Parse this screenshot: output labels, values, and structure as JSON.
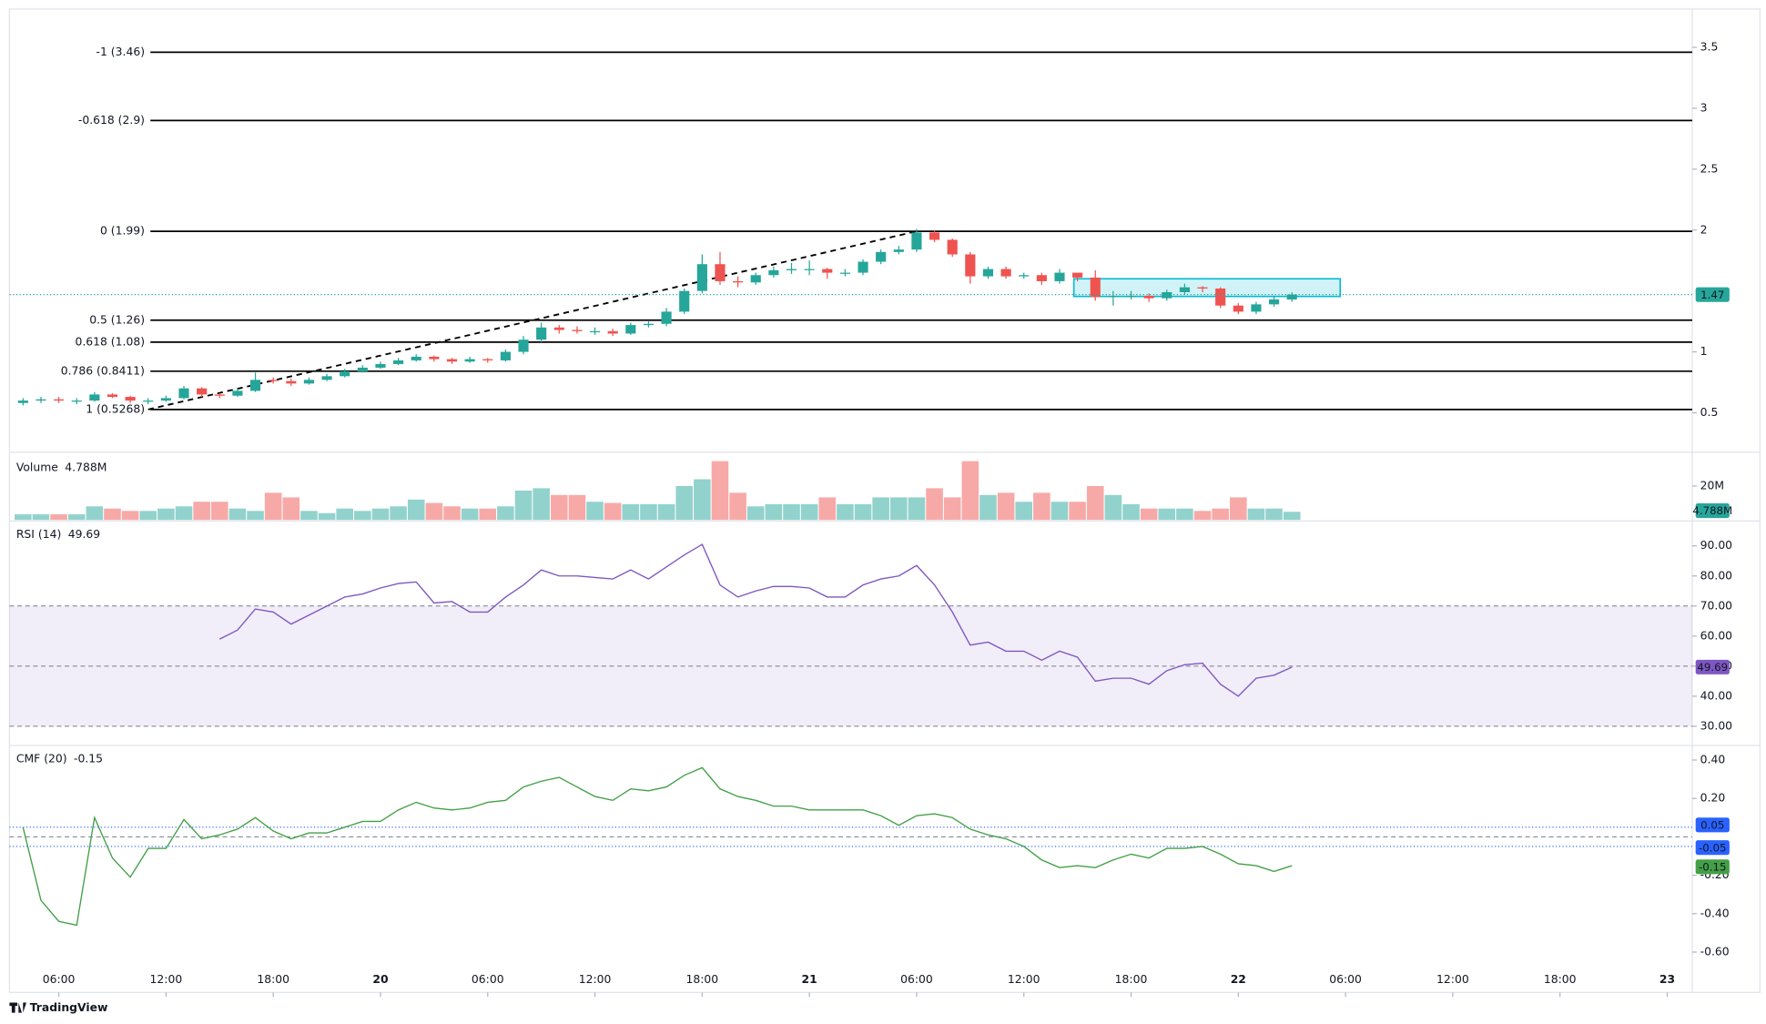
{
  "chart_data": [
    {
      "type": "candlestick",
      "colors": {
        "up": "#26a69a",
        "down": "#ef5350"
      },
      "open": [
        0.58,
        0.6,
        0.61,
        0.6,
        0.6,
        0.65,
        0.63,
        0.6,
        0.6,
        0.62,
        0.7,
        0.65,
        0.64,
        0.68,
        0.77,
        0.76,
        0.74,
        0.77,
        0.8,
        0.84,
        0.87,
        0.9,
        0.93,
        0.96,
        0.94,
        0.92,
        0.94,
        0.93,
        1.0,
        1.1,
        1.2,
        1.18,
        1.17,
        1.17,
        1.15,
        1.22,
        1.23,
        1.33,
        1.5,
        1.72,
        1.58,
        1.57,
        1.63,
        1.67,
        1.68,
        1.68,
        1.65,
        1.65,
        1.74,
        1.82,
        1.84,
        1.98,
        1.92,
        1.8,
        1.62,
        1.68,
        1.62,
        1.63,
        1.58,
        1.65,
        1.61,
        1.45,
        1.46,
        1.46,
        1.44,
        1.49,
        1.53,
        1.52,
        1.38,
        1.33,
        1.39,
        1.43
      ],
      "high": [
        0.62,
        0.63,
        0.63,
        0.62,
        0.67,
        0.66,
        0.64,
        0.62,
        0.64,
        0.72,
        0.71,
        0.66,
        0.7,
        0.83,
        0.79,
        0.78,
        0.79,
        0.82,
        0.86,
        0.89,
        0.92,
        0.95,
        0.98,
        0.97,
        0.95,
        0.96,
        0.95,
        1.02,
        1.13,
        1.24,
        1.22,
        1.21,
        1.2,
        1.19,
        1.24,
        1.25,
        1.36,
        1.52,
        1.8,
        1.82,
        1.62,
        1.65,
        1.7,
        1.73,
        1.75,
        1.69,
        1.68,
        1.76,
        1.84,
        1.87,
        2.01,
        2.0,
        1.93,
        1.82,
        1.7,
        1.7,
        1.65,
        1.65,
        1.68,
        1.64,
        1.67,
        1.5,
        1.5,
        1.48,
        1.51,
        1.56,
        1.54,
        1.53,
        1.4,
        1.41,
        1.46,
        1.49
      ],
      "low": [
        0.56,
        0.58,
        0.58,
        0.57,
        0.59,
        0.62,
        0.58,
        0.57,
        0.59,
        0.61,
        0.63,
        0.62,
        0.63,
        0.67,
        0.74,
        0.72,
        0.73,
        0.76,
        0.79,
        0.83,
        0.86,
        0.89,
        0.92,
        0.92,
        0.9,
        0.91,
        0.91,
        0.92,
        0.98,
        1.08,
        1.15,
        1.15,
        1.14,
        1.13,
        1.14,
        1.2,
        1.21,
        1.31,
        1.48,
        1.55,
        1.53,
        1.55,
        1.61,
        1.64,
        1.63,
        1.6,
        1.62,
        1.63,
        1.72,
        1.8,
        1.82,
        1.9,
        1.78,
        1.56,
        1.6,
        1.6,
        1.6,
        1.55,
        1.56,
        1.58,
        1.42,
        1.38,
        1.43,
        1.41,
        1.42,
        1.47,
        1.49,
        1.36,
        1.31,
        1.31,
        1.37,
        1.41
      ],
      "close": [
        0.6,
        0.61,
        0.6,
        0.6,
        0.65,
        0.63,
        0.6,
        0.6,
        0.62,
        0.7,
        0.65,
        0.64,
        0.68,
        0.77,
        0.76,
        0.74,
        0.77,
        0.8,
        0.84,
        0.87,
        0.9,
        0.93,
        0.96,
        0.94,
        0.92,
        0.94,
        0.93,
        1.0,
        1.1,
        1.2,
        1.18,
        1.17,
        1.17,
        1.15,
        1.22,
        1.23,
        1.33,
        1.5,
        1.72,
        1.58,
        1.57,
        1.63,
        1.67,
        1.68,
        1.68,
        1.65,
        1.65,
        1.74,
        1.82,
        1.84,
        1.98,
        1.92,
        1.8,
        1.62,
        1.68,
        1.62,
        1.63,
        1.58,
        1.65,
        1.61,
        1.45,
        1.46,
        1.46,
        1.44,
        1.49,
        1.53,
        1.52,
        1.38,
        1.33,
        1.39,
        1.43,
        1.47
      ],
      "ylim": [
        0.185,
        3.815
      ],
      "yticks": [
        3.5,
        3,
        2.5,
        2,
        1,
        0.5
      ],
      "xlim": [
        -0.76,
        93.4
      ],
      "xticks": [
        {
          "value": 2,
          "label": "06:00"
        },
        {
          "value": 8,
          "label": "12:00"
        },
        {
          "value": 14,
          "label": "18:00"
        },
        {
          "value": 20,
          "label": "20"
        },
        {
          "value": 26,
          "label": "06:00"
        },
        {
          "value": 32,
          "label": "12:00"
        },
        {
          "value": 38,
          "label": "18:00"
        },
        {
          "value": 44,
          "label": "21"
        },
        {
          "value": 50,
          "label": "06:00"
        },
        {
          "value": 56,
          "label": "12:00"
        },
        {
          "value": 62,
          "label": "18:00"
        },
        {
          "value": 68,
          "label": "22"
        },
        {
          "value": 74,
          "label": "06:00"
        },
        {
          "value": 80,
          "label": "12:00"
        },
        {
          "value": 86,
          "label": "18:00"
        },
        {
          "value": 92,
          "label": "23"
        }
      ],
      "fib_x": [
        7,
        50
      ],
      "fib_levels": [
        {
          "label": "-1 (3.46)",
          "value": 3.46
        },
        {
          "label": "-0.618 (2.9)",
          "value": 2.9
        },
        {
          "label": "0 (1.99)",
          "value": 1.99
        },
        {
          "label": "0.5 (1.26)",
          "value": 1.26
        },
        {
          "label": "0.618 (1.08)",
          "value": 1.08
        },
        {
          "label": "0.786 (0.8411)",
          "value": 0.8411
        },
        {
          "label": "1 (0.5268)",
          "value": 0.5268
        }
      ],
      "box": {
        "x": [
          58.8,
          73.7
        ],
        "y": [
          1.455,
          1.6
        ],
        "color": "#00bcd4"
      }
    },
    {
      "type": "bar",
      "title": "Volume",
      "values": [
        3.3,
        3.3,
        3.3,
        3.3,
        8,
        6.7,
        5.3,
        5.3,
        6.7,
        8,
        10.7,
        10.7,
        6.7,
        5.3,
        16,
        13.3,
        5.3,
        4,
        6.7,
        5.3,
        6.7,
        8,
        12,
        10,
        8,
        6.7,
        6.7,
        8,
        17.3,
        18.7,
        14.7,
        14.7,
        10.7,
        10,
        9.3,
        9.3,
        9.3,
        20,
        24,
        34.7,
        16,
        8,
        9.3,
        9.3,
        9.3,
        13.3,
        9.3,
        9.3,
        13.3,
        13.3,
        13.3,
        18.7,
        13.3,
        34.7,
        14.7,
        16,
        10.7,
        16,
        10.7,
        10.7,
        20,
        14.7,
        9.3,
        6.7,
        6.7,
        6.7,
        5.3,
        6.7,
        13.3,
        6.7,
        6.7,
        4.788
      ],
      "value_labels": {
        "71": "4.788M"
      },
      "ylim": [
        0,
        39.3
      ],
      "yticks": [
        {
          "value": 20,
          "label": "20M"
        }
      ]
    },
    {
      "type": "line",
      "title": "RSI (14)",
      "color": "#7e57c2",
      "values": [
        null,
        null,
        null,
        null,
        null,
        null,
        null,
        null,
        null,
        null,
        null,
        59,
        62,
        69,
        68,
        64,
        67,
        70,
        73,
        74,
        76,
        77.5,
        78,
        71,
        71.5,
        68,
        68,
        73,
        77,
        82,
        80,
        80,
        79.5,
        79,
        82,
        79,
        83,
        87,
        90.5,
        77,
        73,
        75,
        76.5,
        76.5,
        76,
        73,
        73,
        77,
        79,
        80,
        83.5,
        77,
        68,
        57,
        58,
        55,
        55,
        52,
        55,
        53,
        45,
        46,
        46,
        44,
        48.5,
        50.5,
        51,
        44,
        40,
        46,
        47,
        49.69
      ],
      "upper": 70,
      "midline": 50,
      "lower": 30,
      "ylim": [
        24,
        97.9
      ],
      "yticks": [
        {
          "value": 90,
          "label": "90.00"
        },
        {
          "value": 80,
          "label": "80.00"
        },
        {
          "value": 70,
          "label": "70.00"
        },
        {
          "value": 60,
          "label": "60.00"
        },
        {
          "value": 50,
          "label": "50.00"
        },
        {
          "value": 40,
          "label": "40.00"
        },
        {
          "value": 30,
          "label": "30.00"
        }
      ]
    },
    {
      "type": "line",
      "title": "CMF (20)",
      "color": "#43a047",
      "values": [
        0.05,
        -0.33,
        -0.44,
        -0.46,
        0.1,
        -0.11,
        -0.21,
        -0.06,
        -0.06,
        0.09,
        -0.01,
        0.01,
        0.04,
        0.1,
        0.03,
        -0.01,
        0.02,
        0.02,
        0.05,
        0.08,
        0.08,
        0.14,
        0.18,
        0.15,
        0.14,
        0.15,
        0.18,
        0.19,
        0.26,
        0.29,
        0.31,
        0.26,
        0.21,
        0.19,
        0.25,
        0.24,
        0.26,
        0.32,
        0.36,
        0.25,
        0.21,
        0.19,
        0.16,
        0.16,
        0.14,
        0.14,
        0.14,
        0.14,
        0.11,
        0.06,
        0.11,
        0.12,
        0.1,
        0.04,
        0.01,
        -0.01,
        -0.05,
        -0.12,
        -0.16,
        -0.15,
        -0.16,
        -0.12,
        -0.09,
        -0.11,
        -0.06,
        -0.06,
        -0.05,
        -0.09,
        -0.14,
        -0.15,
        -0.18,
        -0.15
      ],
      "upper": 0.05,
      "midline": 0,
      "lower": -0.05,
      "ylim": [
        -0.81,
        0.47
      ],
      "yticks": [
        {
          "value": 0.4,
          "label": "0.40"
        },
        {
          "value": 0.2,
          "label": "0.20"
        },
        {
          "value": -0.2,
          "label": "-0.20"
        },
        {
          "value": -0.4,
          "label": "-0.40"
        },
        {
          "value": -0.6,
          "label": "-0.60"
        }
      ]
    }
  ],
  "footer": {
    "brand": "TradingView"
  }
}
